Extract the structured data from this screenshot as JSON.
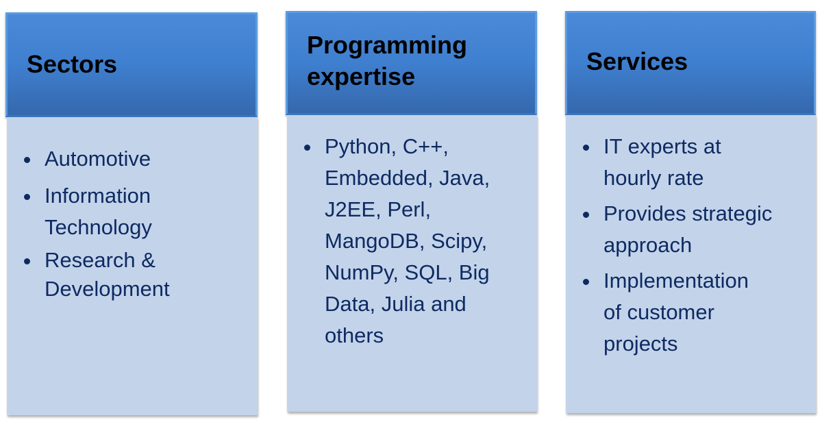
{
  "columns": [
    {
      "title_lines": [
        "Sectors"
      ],
      "items": [
        [
          "Automotive"
        ],
        [
          "Information",
          "Technology"
        ],
        [
          "Research &",
          "Development"
        ]
      ]
    },
    {
      "title_lines": [
        "Programming",
        "expertise"
      ],
      "items": [
        [
          "Python, C++,",
          "Embedded, Java,",
          "J2EE,  Perl,",
          "MangoDB, Scipy,",
          "NumPy, SQL, Big",
          "Data, Julia and",
          "others"
        ]
      ]
    },
    {
      "title_lines": [
        "Services"
      ],
      "items": [
        [
          "IT experts at",
          "hourly rate"
        ],
        [
          "Provides strategic",
          "approach"
        ],
        [
          "Implementation",
          "of customer",
          "projects"
        ]
      ]
    }
  ],
  "colors": {
    "header": "#3f7fcf",
    "body": "#c3d4ea",
    "text": "#0f2a62"
  }
}
